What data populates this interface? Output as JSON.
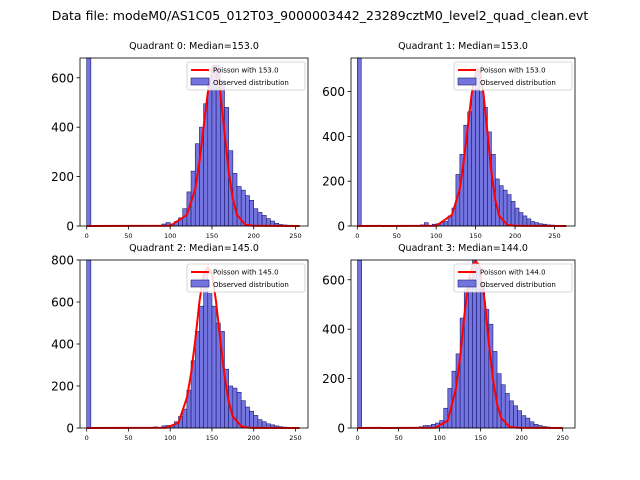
{
  "figure": {
    "suptitle": "Data file: modeM0/AS1C05_012T03_9000003442_23289cztM0_level2_quad_clean.evt"
  },
  "colors": {
    "bar_fill": "#7474e0",
    "bar_edge": "#1c1c6e",
    "poisson_line": "#ff0000"
  },
  "chart_data": [
    {
      "type": "bar",
      "title": "Quadrant 0: Median=153.0",
      "median": 153.0,
      "xlim": [
        -8,
        265
      ],
      "ylim": [
        0,
        680
      ],
      "xticks": [
        0,
        50,
        100,
        150,
        200,
        250
      ],
      "yticks": [
        0,
        200,
        400,
        600
      ],
      "bin_width": 5,
      "bins_x": [
        0,
        85,
        90,
        95,
        100,
        105,
        110,
        115,
        120,
        125,
        130,
        135,
        140,
        145,
        150,
        155,
        160,
        165,
        170,
        175,
        180,
        185,
        190,
        195,
        200,
        205,
        210,
        215,
        220,
        225,
        230,
        235,
        240,
        245,
        250
      ],
      "counts": [
        680,
        3,
        8,
        14,
        8,
        18,
        33,
        70,
        138,
        222,
        333,
        400,
        495,
        578,
        650,
        650,
        590,
        480,
        305,
        213,
        160,
        145,
        123,
        104,
        70,
        55,
        43,
        30,
        20,
        11,
        6,
        4,
        3,
        2,
        1
      ],
      "poisson_x": [
        0,
        100,
        120,
        130,
        135,
        140,
        145,
        150,
        153,
        156,
        160,
        165,
        170,
        175,
        180,
        190,
        200,
        255
      ],
      "poisson_y": [
        0,
        1,
        45,
        150,
        260,
        400,
        540,
        625,
        645,
        625,
        540,
        380,
        220,
        110,
        45,
        5,
        1,
        0
      ],
      "legend": [
        "Poisson with 153.0",
        "Observed distribution"
      ],
      "legend_loc": "upper right"
    },
    {
      "type": "bar",
      "title": "Quadrant 1: Median=153.0",
      "median": 153.0,
      "xlim": [
        -8,
        276
      ],
      "ylim": [
        0,
        750
      ],
      "xticks": [
        0,
        50,
        100,
        150,
        200,
        250
      ],
      "yticks": [
        0,
        200,
        400,
        600
      ],
      "bin_width": 5,
      "bins_x": [
        0,
        80,
        85,
        95,
        100,
        105,
        110,
        115,
        120,
        125,
        130,
        135,
        140,
        145,
        150,
        155,
        160,
        165,
        170,
        175,
        180,
        185,
        190,
        195,
        200,
        205,
        210,
        215,
        220,
        225,
        230,
        235,
        240,
        245,
        250,
        255,
        260
      ],
      "counts": [
        750,
        5,
        15,
        8,
        10,
        15,
        20,
        45,
        80,
        230,
        320,
        450,
        510,
        610,
        690,
        600,
        530,
        420,
        320,
        210,
        180,
        160,
        140,
        110,
        80,
        60,
        45,
        32,
        20,
        15,
        10,
        8,
        5,
        4,
        3,
        2,
        1
      ],
      "poisson_x": [
        0,
        100,
        120,
        130,
        135,
        140,
        145,
        150,
        153,
        156,
        160,
        165,
        170,
        175,
        180,
        190,
        200,
        265
      ],
      "poisson_y": [
        0,
        1,
        50,
        165,
        290,
        440,
        590,
        680,
        700,
        680,
        590,
        415,
        240,
        115,
        45,
        5,
        1,
        0
      ],
      "legend": [
        "Poisson with 153.0",
        "Observed distribution"
      ],
      "legend_loc": "upper right"
    },
    {
      "type": "bar",
      "title": "Quadrant 2: Median=145.0",
      "median": 145.0,
      "xlim": [
        -8,
        265
      ],
      "ylim": [
        0,
        800
      ],
      "xticks": [
        0,
        50,
        100,
        150,
        200,
        250
      ],
      "yticks": [
        0,
        200,
        400,
        600,
        800
      ],
      "bin_width": 5,
      "bins_x": [
        0,
        80,
        90,
        95,
        100,
        105,
        110,
        115,
        120,
        125,
        130,
        135,
        140,
        145,
        150,
        155,
        160,
        165,
        170,
        175,
        180,
        185,
        190,
        195,
        200,
        205,
        210,
        215,
        220,
        225,
        230,
        235,
        240,
        245
      ],
      "counts": [
        800,
        5,
        10,
        12,
        10,
        30,
        55,
        90,
        180,
        320,
        460,
        580,
        740,
        640,
        580,
        500,
        460,
        280,
        200,
        190,
        170,
        130,
        100,
        80,
        60,
        40,
        30,
        20,
        15,
        10,
        6,
        4,
        3,
        2
      ],
      "poisson_x": [
        0,
        95,
        110,
        120,
        125,
        130,
        135,
        140,
        145,
        150,
        155,
        160,
        165,
        170,
        175,
        185,
        195,
        255
      ],
      "poisson_y": [
        0,
        1,
        25,
        145,
        260,
        420,
        600,
        735,
        765,
        735,
        600,
        420,
        250,
        125,
        55,
        8,
        1,
        0
      ],
      "legend": [
        "Poisson with 145.0",
        "Observed distribution"
      ],
      "legend_loc": "upper right"
    },
    {
      "type": "bar",
      "title": "Quadrant 3: Median=144.0",
      "median": 144.0,
      "xlim": [
        -8,
        265
      ],
      "ylim": [
        0,
        680
      ],
      "xticks": [
        0,
        50,
        100,
        150,
        200,
        250
      ],
      "yticks": [
        0,
        200,
        400,
        600
      ],
      "bin_width": 5,
      "bins_x": [
        0,
        75,
        80,
        85,
        90,
        95,
        100,
        105,
        110,
        115,
        120,
        125,
        130,
        135,
        140,
        145,
        150,
        155,
        160,
        165,
        170,
        175,
        180,
        185,
        190,
        195,
        200,
        205,
        210,
        215,
        220,
        225,
        230,
        235,
        240
      ],
      "counts": [
        680,
        5,
        10,
        10,
        15,
        20,
        30,
        80,
        160,
        230,
        300,
        445,
        560,
        610,
        680,
        650,
        590,
        480,
        420,
        310,
        220,
        175,
        140,
        110,
        90,
        70,
        50,
        40,
        25,
        15,
        10,
        6,
        4,
        2,
        1
      ],
      "poisson_x": [
        0,
        95,
        110,
        120,
        125,
        130,
        135,
        140,
        144,
        148,
        155,
        160,
        165,
        170,
        175,
        185,
        195,
        250
      ],
      "poisson_y": [
        0,
        1,
        30,
        160,
        285,
        450,
        590,
        660,
        675,
        660,
        515,
        345,
        200,
        95,
        40,
        5,
        1,
        0
      ],
      "legend": [
        "Poisson with 144.0",
        "Observed distribution"
      ],
      "legend_loc": "upper right"
    }
  ]
}
